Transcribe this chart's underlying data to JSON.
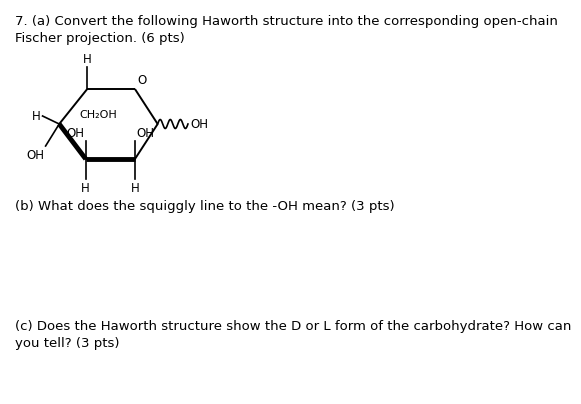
{
  "title_text": "7. (a) Convert the following Haworth structure into the corresponding open-chain\nFischer projection. (6 pts)",
  "part_b_text": "(b) What does the squiggly line to the -OH mean? (3 pts)",
  "part_c_text": "(c) Does the Haworth structure show the D or L form of the carbohydrate? How can\nyou tell? (3 pts)",
  "bg_color": "#ffffff",
  "text_color": "#000000",
  "font_size_title": 9.5,
  "font_size_labels": 9.5,
  "font_size_structure": 8.5,
  "ring_lw": 1.4,
  "ring_lw_bold": 3.5,
  "sub_lw": 1.2
}
